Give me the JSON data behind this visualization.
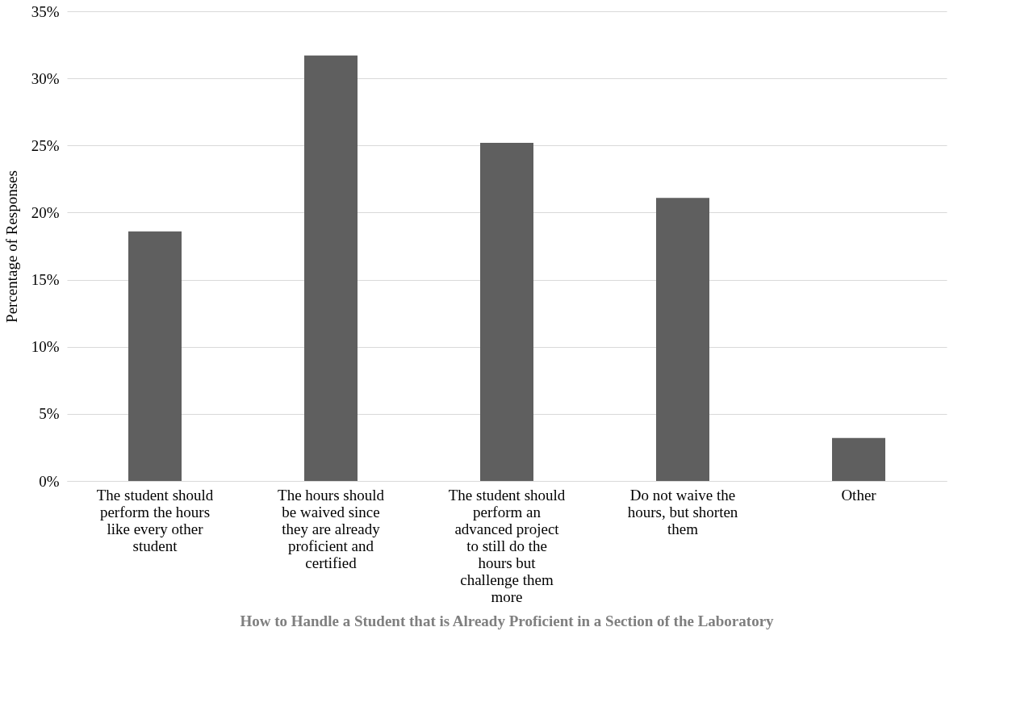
{
  "chart_data": {
    "type": "bar",
    "title": "How to Handle a Student that is Already Proficient in a Section of the Laboratory",
    "ylabel": "Percentage of Responses",
    "categories": [
      "The student should perform the hours like every other student",
      "The hours should be waived since they are already proficient and certified",
      "The student should perform an advanced project to still do the hours but challenge them more",
      "Do not waive the hours, but shorten them",
      "Other"
    ],
    "values": [
      18.6,
      31.7,
      25.2,
      21.1,
      3.2
    ],
    "color": "#5f5f5f",
    "ylim": [
      0,
      35
    ],
    "yticks": [
      {
        "value": 0,
        "label": "0%"
      },
      {
        "value": 5,
        "label": "5%"
      },
      {
        "value": 10,
        "label": "10%"
      },
      {
        "value": 15,
        "label": "15%"
      },
      {
        "value": 20,
        "label": "20%"
      },
      {
        "value": 25,
        "label": "25%"
      },
      {
        "value": 30,
        "label": "30%"
      },
      {
        "value": 35,
        "label": "35%"
      }
    ],
    "grid": "y"
  }
}
